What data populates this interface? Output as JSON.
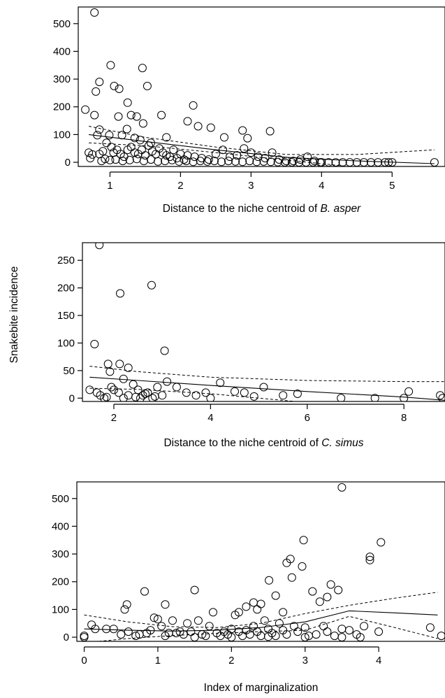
{
  "shared_ylabel": "Snakebite incidence",
  "chart_data": [
    {
      "type": "scatter",
      "xlabel_parts": [
        {
          "text": "Distance to the niche centroid of ",
          "italic": false
        },
        {
          "text": "B. asper",
          "italic": true
        }
      ],
      "ylabel": "",
      "xlim": [
        0.55,
        5.75
      ],
      "ylim": [
        -15,
        560
      ],
      "xticks": [
        1,
        2,
        3,
        4,
        5
      ],
      "yticks": [
        0,
        100,
        200,
        300,
        400,
        500
      ],
      "grid": false,
      "points": [
        [
          0.78,
          540
        ],
        [
          1.01,
          350
        ],
        [
          1.46,
          340
        ],
        [
          0.85,
          290
        ],
        [
          1.06,
          275
        ],
        [
          1.13,
          265
        ],
        [
          0.8,
          255
        ],
        [
          1.53,
          275
        ],
        [
          1.25,
          215
        ],
        [
          1.38,
          165
        ],
        [
          1.12,
          165
        ],
        [
          0.65,
          190
        ],
        [
          0.78,
          170
        ],
        [
          1.3,
          170
        ],
        [
          2.18,
          205
        ],
        [
          1.73,
          170
        ],
        [
          2.1,
          148
        ],
        [
          2.25,
          130
        ],
        [
          2.43,
          125
        ],
        [
          1.47,
          140
        ],
        [
          1.24,
          120
        ],
        [
          0.85,
          118
        ],
        [
          0.82,
          98
        ],
        [
          0.99,
          98
        ],
        [
          1.17,
          98
        ],
        [
          1.35,
          88
        ],
        [
          1.43,
          80
        ],
        [
          1.58,
          70
        ],
        [
          1.8,
          90
        ],
        [
          2.88,
          115
        ],
        [
          3.27,
          112
        ],
        [
          2.95,
          87
        ],
        [
          2.62,
          90
        ],
        [
          0.7,
          35
        ],
        [
          0.75,
          28
        ],
        [
          0.85,
          30
        ],
        [
          0.9,
          40
        ],
        [
          0.95,
          70
        ],
        [
          1.02,
          55
        ],
        [
          1.05,
          35
        ],
        [
          1.1,
          45
        ],
        [
          1.15,
          30
        ],
        [
          1.2,
          20
        ],
        [
          1.25,
          45
        ],
        [
          1.3,
          55
        ],
        [
          1.35,
          35
        ],
        [
          1.4,
          30
        ],
        [
          1.45,
          45
        ],
        [
          1.5,
          25
        ],
        [
          1.55,
          60
        ],
        [
          1.6,
          40
        ],
        [
          1.65,
          30
        ],
        [
          1.7,
          50
        ],
        [
          1.75,
          35
        ],
        [
          1.8,
          25
        ],
        [
          1.85,
          20
        ],
        [
          1.9,
          45
        ],
        [
          1.95,
          15
        ],
        [
          2.0,
          30
        ],
        [
          2.05,
          10
        ],
        [
          2.1,
          25
        ],
        [
          2.2,
          20
        ],
        [
          2.3,
          15
        ],
        [
          2.4,
          10
        ],
        [
          2.5,
          30
        ],
        [
          2.6,
          45
        ],
        [
          2.7,
          20
        ],
        [
          2.8,
          25
        ],
        [
          2.9,
          50
        ],
        [
          3.0,
          35
        ],
        [
          3.1,
          20
        ],
        [
          3.2,
          15
        ],
        [
          3.3,
          35
        ],
        [
          3.4,
          10
        ],
        [
          3.5,
          5
        ],
        [
          3.6,
          5
        ],
        [
          3.7,
          10
        ],
        [
          3.8,
          20
        ],
        [
          3.9,
          5
        ],
        [
          4.0,
          0
        ],
        [
          4.2,
          0
        ],
        [
          4.4,
          0
        ],
        [
          4.6,
          0
        ],
        [
          4.8,
          0
        ],
        [
          5.0,
          0
        ],
        [
          5.6,
          0
        ],
        [
          0.72,
          15
        ],
        [
          0.88,
          5
        ],
        [
          0.93,
          12
        ],
        [
          1.0,
          8
        ],
        [
          1.08,
          10
        ],
        [
          1.18,
          5
        ],
        [
          1.28,
          8
        ],
        [
          1.38,
          12
        ],
        [
          1.48,
          5
        ],
        [
          1.58,
          10
        ],
        [
          1.68,
          3
        ],
        [
          1.78,
          5
        ],
        [
          1.88,
          8
        ],
        [
          1.98,
          3
        ],
        [
          2.08,
          5
        ],
        [
          2.18,
          2
        ],
        [
          2.28,
          5
        ],
        [
          2.38,
          3
        ],
        [
          2.48,
          5
        ],
        [
          2.58,
          2
        ],
        [
          2.68,
          5
        ],
        [
          2.78,
          3
        ],
        [
          2.88,
          2
        ],
        [
          2.98,
          5
        ],
        [
          3.08,
          2
        ],
        [
          3.18,
          3
        ],
        [
          3.28,
          2
        ],
        [
          3.38,
          1
        ],
        [
          3.48,
          0
        ],
        [
          3.58,
          0
        ],
        [
          3.68,
          0
        ],
        [
          3.78,
          0
        ],
        [
          3.88,
          0
        ],
        [
          3.98,
          0
        ],
        [
          4.1,
          0
        ],
        [
          4.3,
          0
        ],
        [
          4.5,
          0
        ],
        [
          4.7,
          0
        ],
        [
          4.9,
          0
        ],
        [
          4.95,
          0
        ]
      ],
      "fit": [
        [
          0.7,
          100
        ],
        [
          1.5,
          75
        ],
        [
          2.5,
          45
        ],
        [
          3.5,
          18
        ],
        [
          4.5,
          5
        ],
        [
          5.6,
          -5
        ]
      ],
      "ci_upper": [
        [
          0.7,
          130
        ],
        [
          1.5,
          90
        ],
        [
          2.5,
          55
        ],
        [
          3.5,
          28
        ],
        [
          4.5,
          28
        ],
        [
          5.6,
          45
        ]
      ],
      "ci_lower": [
        [
          0.7,
          70
        ],
        [
          1.5,
          60
        ],
        [
          2.5,
          35
        ],
        [
          3.5,
          8
        ],
        [
          4.5,
          -18
        ],
        [
          5.6,
          -55
        ]
      ]
    },
    {
      "type": "scatter",
      "xlabel_parts": [
        {
          "text": "Distance to the niche centroid of ",
          "italic": false
        },
        {
          "text": "C. simus",
          "italic": true
        }
      ],
      "ylabel": "Snakebite incidence",
      "xlim": [
        1.35,
        8.85
      ],
      "ylim": [
        -6,
        282
      ],
      "xticks": [
        2,
        4,
        6,
        8
      ],
      "yticks": [
        0,
        50,
        100,
        150,
        200,
        250
      ],
      "grid": false,
      "points": [
        [
          1.7,
          278
        ],
        [
          2.78,
          205
        ],
        [
          2.13,
          190
        ],
        [
          1.6,
          98
        ],
        [
          3.05,
          86
        ],
        [
          1.88,
          62
        ],
        [
          2.12,
          62
        ],
        [
          2.3,
          55
        ],
        [
          1.92,
          48
        ],
        [
          1.5,
          15
        ],
        [
          1.65,
          10
        ],
        [
          1.72,
          5
        ],
        [
          1.8,
          0
        ],
        [
          1.85,
          2
        ],
        [
          1.95,
          20
        ],
        [
          2.0,
          15
        ],
        [
          2.1,
          10
        ],
        [
          2.2,
          35
        ],
        [
          2.3,
          5
        ],
        [
          2.4,
          25
        ],
        [
          2.5,
          15
        ],
        [
          2.6,
          5
        ],
        [
          2.7,
          10
        ],
        [
          2.8,
          0
        ],
        [
          2.9,
          20
        ],
        [
          3.0,
          5
        ],
        [
          3.1,
          30
        ],
        [
          3.3,
          20
        ],
        [
          3.5,
          10
        ],
        [
          3.7,
          5
        ],
        [
          3.9,
          10
        ],
        [
          4.2,
          28
        ],
        [
          4.5,
          12
        ],
        [
          4.7,
          10
        ],
        [
          5.1,
          20
        ],
        [
          5.5,
          5
        ],
        [
          5.8,
          8
        ],
        [
          6.7,
          0
        ],
        [
          7.4,
          0
        ],
        [
          8.0,
          0
        ],
        [
          8.1,
          12
        ],
        [
          8.75,
          5
        ],
        [
          8.8,
          0
        ],
        [
          2.2,
          0
        ],
        [
          2.45,
          2
        ],
        [
          2.55,
          0
        ],
        [
          2.65,
          8
        ],
        [
          2.85,
          3
        ],
        [
          4.0,
          0
        ],
        [
          4.9,
          3
        ]
      ],
      "fit": [
        [
          1.5,
          38
        ],
        [
          2.5,
          32
        ],
        [
          4,
          23
        ],
        [
          6,
          12
        ],
        [
          8,
          2
        ],
        [
          8.85,
          -4
        ]
      ],
      "ci_upper": [
        [
          1.5,
          58
        ],
        [
          2.5,
          48
        ],
        [
          4,
          38
        ],
        [
          6,
          32
        ],
        [
          8,
          30
        ],
        [
          8.85,
          30
        ]
      ],
      "ci_lower": [
        [
          1.5,
          18
        ],
        [
          2.5,
          16
        ],
        [
          4,
          8
        ],
        [
          6,
          -8
        ],
        [
          8,
          -28
        ],
        [
          8.85,
          -38
        ]
      ]
    },
    {
      "type": "scatter",
      "xlabel_parts": [
        {
          "text": "Index of marginalization",
          "italic": false
        }
      ],
      "ylabel": "",
      "xlim": [
        -0.1,
        4.9
      ],
      "ylim": [
        -15,
        560
      ],
      "xticks": [
        0,
        1,
        2,
        3,
        4
      ],
      "yticks": [
        0,
        100,
        200,
        300,
        400,
        500
      ],
      "grid": false,
      "points": [
        [
          3.5,
          540
        ],
        [
          2.98,
          350
        ],
        [
          4.03,
          342
        ],
        [
          3.88,
          290
        ],
        [
          3.88,
          278
        ],
        [
          2.8,
          282
        ],
        [
          2.75,
          268
        ],
        [
          2.96,
          255
        ],
        [
          2.82,
          215
        ],
        [
          2.51,
          205
        ],
        [
          3.35,
          190
        ],
        [
          0.82,
          165
        ],
        [
          1.5,
          170
        ],
        [
          3.1,
          165
        ],
        [
          3.45,
          170
        ],
        [
          2.6,
          150
        ],
        [
          2.3,
          125
        ],
        [
          0.58,
          118
        ],
        [
          0.55,
          100
        ],
        [
          1.1,
          118
        ],
        [
          3.3,
          145
        ],
        [
          3.2,
          128
        ],
        [
          2.4,
          120
        ],
        [
          2.7,
          90
        ],
        [
          0.1,
          45
        ],
        [
          0.15,
          30
        ],
        [
          0.4,
          30
        ],
        [
          0.6,
          20
        ],
        [
          0.7,
          5
        ],
        [
          0.75,
          10
        ],
        [
          0.85,
          15
        ],
        [
          0.9,
          25
        ],
        [
          0.95,
          70
        ],
        [
          1.0,
          65
        ],
        [
          1.05,
          40
        ],
        [
          1.15,
          15
        ],
        [
          1.2,
          60
        ],
        [
          1.25,
          15
        ],
        [
          1.3,
          20
        ],
        [
          1.35,
          10
        ],
        [
          1.4,
          50
        ],
        [
          1.45,
          20
        ],
        [
          1.55,
          60
        ],
        [
          1.6,
          10
        ],
        [
          1.65,
          5
        ],
        [
          1.7,
          40
        ],
        [
          1.75,
          90
        ],
        [
          1.8,
          15
        ],
        [
          1.85,
          5
        ],
        [
          1.9,
          20
        ],
        [
          1.95,
          10
        ],
        [
          2.0,
          30
        ],
        [
          2.05,
          80
        ],
        [
          2.1,
          20
        ],
        [
          2.15,
          5
        ],
        [
          2.2,
          25
        ],
        [
          2.25,
          10
        ],
        [
          2.3,
          40
        ],
        [
          2.35,
          20
        ],
        [
          2.4,
          5
        ],
        [
          2.45,
          60
        ],
        [
          2.5,
          30
        ],
        [
          2.55,
          15
        ],
        [
          2.6,
          5
        ],
        [
          2.65,
          50
        ],
        [
          2.7,
          25
        ],
        [
          2.75,
          10
        ],
        [
          2.85,
          40
        ],
        [
          2.9,
          20
        ],
        [
          3.0,
          35
        ],
        [
          3.05,
          5
        ],
        [
          3.15,
          10
        ],
        [
          3.25,
          40
        ],
        [
          3.3,
          20
        ],
        [
          3.4,
          5
        ],
        [
          3.5,
          30
        ],
        [
          3.6,
          25
        ],
        [
          3.7,
          10
        ],
        [
          3.75,
          0
        ],
        [
          3.8,
          40
        ],
        [
          4.0,
          20
        ],
        [
          4.7,
          35
        ],
        [
          4.85,
          5
        ],
        [
          0.0,
          5
        ],
        [
          0.0,
          0
        ],
        [
          0.3,
          30
        ],
        [
          0.5,
          10
        ],
        [
          1.1,
          5
        ],
        [
          1.5,
          0
        ],
        [
          2.0,
          0
        ],
        [
          2.5,
          2
        ],
        [
          3.0,
          0
        ],
        [
          3.5,
          0
        ],
        [
          2.1,
          90
        ],
        [
          2.2,
          110
        ],
        [
          2.35,
          100
        ]
      ],
      "fit": [
        [
          0,
          30
        ],
        [
          0.6,
          25
        ],
        [
          1.2,
          22
        ],
        [
          1.8,
          25
        ],
        [
          2.4,
          35
        ],
        [
          3.0,
          55
        ],
        [
          3.6,
          95
        ],
        [
          4.2,
          88
        ],
        [
          4.8,
          80
        ]
      ],
      "ci_upper": [
        [
          0,
          80
        ],
        [
          0.6,
          55
        ],
        [
          1.2,
          38
        ],
        [
          1.8,
          35
        ],
        [
          2.4,
          50
        ],
        [
          3.0,
          85
        ],
        [
          3.6,
          115
        ],
        [
          4.2,
          140
        ],
        [
          4.8,
          162
        ]
      ],
      "ci_lower": [
        [
          0,
          -20
        ],
        [
          0.6,
          -5
        ],
        [
          1.2,
          6
        ],
        [
          1.8,
          14
        ],
        [
          2.4,
          20
        ],
        [
          3.0,
          25
        ],
        [
          3.6,
          75
        ],
        [
          4.2,
          36
        ],
        [
          4.8,
          -5
        ]
      ]
    }
  ]
}
